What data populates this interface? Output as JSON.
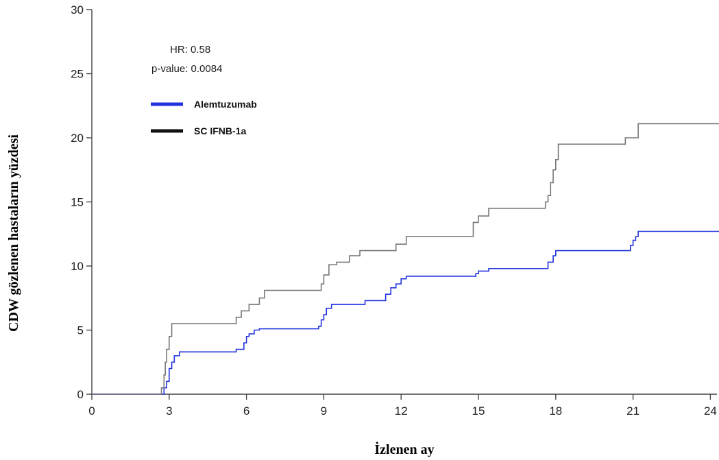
{
  "chart_data": {
    "type": "line",
    "xlabel": "İzlenen ay",
    "ylabel": "CDW   gözlenen hastaların yüzdesi",
    "xlim": [
      0,
      24.6
    ],
    "ylim": [
      0,
      30
    ],
    "xticks": [
      0,
      3,
      6,
      9,
      12,
      15,
      18,
      21,
      24
    ],
    "yticks": [
      0,
      5,
      10,
      15,
      20,
      25,
      30
    ],
    "grid": false,
    "annotations": [
      "HR: 0.58",
      "p-value: 0.0084"
    ],
    "legend_position": "top-left",
    "series": [
      {
        "name": "Alemtuzumab",
        "color": "#2233dd",
        "x": [
          0,
          2.7,
          2.8,
          2.9,
          3.0,
          3.1,
          3.2,
          3.4,
          5.5,
          5.6,
          5.8,
          5.9,
          6.0,
          6.1,
          6.3,
          6.5,
          8.8,
          8.9,
          9.0,
          9.1,
          9.3,
          10.5,
          10.6,
          11.3,
          11.4,
          11.6,
          11.8,
          12.0,
          12.2,
          14.9,
          15.0,
          15.4,
          17.5,
          17.7,
          17.9,
          18.0,
          20.8,
          20.9,
          21.0,
          21.1,
          21.2,
          24.5
        ],
        "y": [
          0,
          0,
          0.5,
          1.0,
          2.0,
          2.5,
          3.0,
          3.3,
          3.3,
          3.5,
          3.5,
          4.0,
          4.5,
          4.7,
          5.0,
          5.1,
          5.3,
          5.8,
          6.2,
          6.7,
          7.0,
          7.0,
          7.3,
          7.3,
          7.8,
          8.3,
          8.6,
          9.0,
          9.2,
          9.4,
          9.6,
          9.8,
          9.8,
          10.3,
          10.8,
          11.2,
          11.2,
          11.6,
          12.0,
          12.3,
          12.7,
          12.7
        ]
      },
      {
        "name": "SC IFNB-1a",
        "color": "#777777",
        "x": [
          0,
          2.6,
          2.7,
          2.8,
          2.85,
          2.9,
          3.0,
          3.1,
          5.5,
          5.6,
          5.8,
          6.1,
          6.5,
          6.7,
          8.8,
          8.9,
          9.0,
          9.2,
          9.5,
          10.0,
          10.4,
          11.6,
          11.8,
          12.2,
          14.6,
          14.8,
          15.0,
          15.4,
          17.5,
          17.6,
          17.7,
          17.8,
          17.9,
          18.0,
          18.1,
          20.5,
          20.7,
          21.0,
          21.2,
          24.5
        ],
        "y": [
          0,
          0,
          0.5,
          1.5,
          2.5,
          3.5,
          4.5,
          5.5,
          5.5,
          6.0,
          6.5,
          7.0,
          7.5,
          8.1,
          8.1,
          8.6,
          9.3,
          10.1,
          10.3,
          10.8,
          11.2,
          11.2,
          11.7,
          12.3,
          12.3,
          13.4,
          13.9,
          14.5,
          14.5,
          15.0,
          15.5,
          16.5,
          17.5,
          18.3,
          19.5,
          19.5,
          20.0,
          20.0,
          21.1,
          21.1
        ]
      }
    ]
  }
}
